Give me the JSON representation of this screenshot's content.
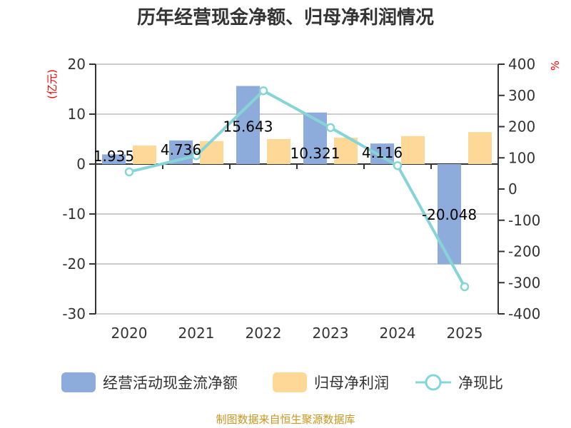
{
  "chart_data": {
    "type": "bar",
    "title": "历年经营现金净额、归母净利润情况",
    "categories": [
      "2020",
      "2021",
      "2022",
      "2023",
      "2024",
      "2025"
    ],
    "series": [
      {
        "name": "经营活动现金流净额",
        "type": "bar",
        "axis": "left",
        "color": "#8eacdb",
        "values": [
          1.935,
          4.736,
          15.643,
          10.321,
          4.116,
          -20.048
        ],
        "labels": [
          "1.935",
          "4.736",
          "15.643",
          "10.321",
          "4.116",
          "-20.048"
        ]
      },
      {
        "name": "归母净利润",
        "type": "bar",
        "axis": "left",
        "color": "#fed897",
        "values": [
          3.7,
          4.6,
          5.0,
          5.3,
          5.6,
          6.4
        ]
      },
      {
        "name": "净现比",
        "type": "line",
        "axis": "right",
        "color": "#86d5d6",
        "values": [
          55,
          107,
          315,
          197,
          75,
          -313
        ]
      }
    ],
    "y_left": {
      "label": "(亿元)",
      "ticks": [
        "20",
        "10",
        "0",
        "-10",
        "-20",
        "-30"
      ],
      "range": [
        -30,
        20
      ]
    },
    "y_right": {
      "label": "%",
      "ticks": [
        "400",
        "300",
        "200",
        "100",
        "0",
        "-100",
        "-200",
        "-300",
        "-400"
      ],
      "range": [
        -400,
        400
      ]
    },
    "grid": true,
    "legend_position": "bottom",
    "source": "制图数据来自恒生聚源数据库"
  }
}
